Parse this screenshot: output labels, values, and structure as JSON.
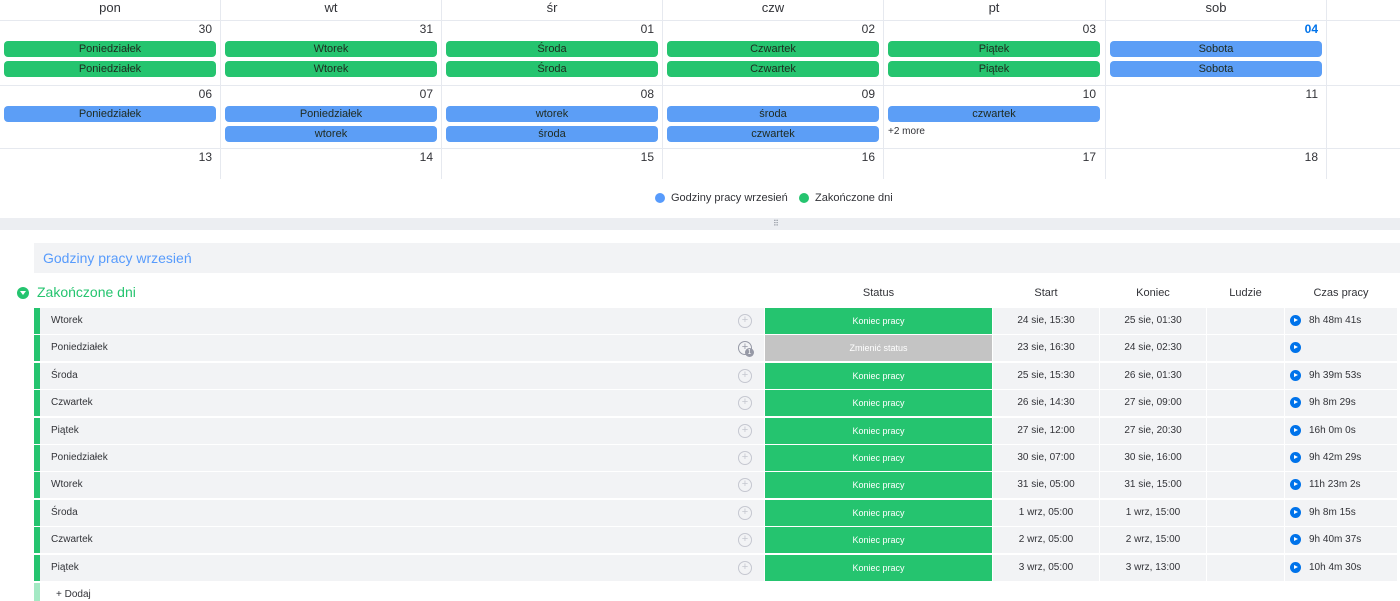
{
  "calendar": {
    "weekdays": [
      "pon",
      "wt",
      "śr",
      "czw",
      "pt",
      "sob"
    ],
    "weeks": [
      {
        "days": [
          {
            "num": "30",
            "today": false,
            "events": [
              {
                "label": "Poniedziałek",
                "color": "green"
              },
              {
                "label": "Poniedziałek",
                "color": "green"
              }
            ]
          },
          {
            "num": "31",
            "today": false,
            "events": [
              {
                "label": "Wtorek",
                "color": "green"
              },
              {
                "label": "Wtorek",
                "color": "green"
              }
            ]
          },
          {
            "num": "01",
            "today": false,
            "events": [
              {
                "label": "Środa",
                "color": "green"
              },
              {
                "label": "Środa",
                "color": "green"
              }
            ]
          },
          {
            "num": "02",
            "today": false,
            "events": [
              {
                "label": "Czwartek",
                "color": "green"
              },
              {
                "label": "Czwartek",
                "color": "green"
              }
            ]
          },
          {
            "num": "03",
            "today": false,
            "events": [
              {
                "label": "Piątek",
                "color": "green"
              },
              {
                "label": "Piątek",
                "color": "green"
              }
            ]
          },
          {
            "num": "04",
            "today": true,
            "events": [
              {
                "label": "Sobota",
                "color": "blue"
              },
              {
                "label": "Sobota",
                "color": "blue"
              }
            ]
          }
        ]
      },
      {
        "days": [
          {
            "num": "06",
            "today": false,
            "events": [
              {
                "label": "Poniedziałek",
                "color": "blue"
              }
            ]
          },
          {
            "num": "07",
            "today": false,
            "events": [
              {
                "label": "Poniedziałek",
                "color": "blue"
              },
              {
                "label": "wtorek",
                "color": "blue"
              }
            ]
          },
          {
            "num": "08",
            "today": false,
            "events": [
              {
                "label": "wtorek",
                "color": "blue"
              },
              {
                "label": "środa",
                "color": "blue"
              }
            ]
          },
          {
            "num": "09",
            "today": false,
            "events": [
              {
                "label": "środa",
                "color": "blue"
              },
              {
                "label": "czwartek",
                "color": "blue"
              }
            ]
          },
          {
            "num": "10",
            "today": false,
            "events": [
              {
                "label": "czwartek",
                "color": "blue"
              }
            ],
            "more": "+2 more"
          },
          {
            "num": "11",
            "today": false,
            "events": []
          }
        ]
      },
      {
        "days": [
          {
            "num": "13",
            "today": false,
            "events": []
          },
          {
            "num": "14",
            "today": false,
            "events": []
          },
          {
            "num": "15",
            "today": false,
            "events": []
          },
          {
            "num": "16",
            "today": false,
            "events": []
          },
          {
            "num": "17",
            "today": false,
            "events": []
          },
          {
            "num": "18",
            "today": false,
            "events": []
          }
        ]
      }
    ]
  },
  "legend": {
    "items": [
      {
        "label": "Godziny pracy wrzesień",
        "color": "#579bfc"
      },
      {
        "label": "Zakończone dni",
        "color": "#25c46f"
      }
    ]
  },
  "colors": {
    "green": "#25c46f",
    "blue": "#5c9ef6",
    "status_gray": "#c4c4c4",
    "accent_blue": "#0073ea"
  },
  "board": {
    "group1_title": "Godziny pracy wrzesień",
    "group2_title": "Zakończone dni",
    "columns": {
      "status": "Status",
      "start": "Start",
      "end": "Koniec",
      "people": "Ludzie",
      "time": "Czas pracy"
    },
    "rows": [
      {
        "name": "Wtorek",
        "status": "Koniec pracy",
        "status_type": "done",
        "start": "24 sie, 15:30",
        "end": "25 sie, 01:30",
        "time": "8h 48m 41s",
        "chat_badge": ""
      },
      {
        "name": "Poniedziałek",
        "status": "Zmienić status",
        "status_type": "change",
        "start": "23 sie, 16:30",
        "end": "24 sie, 02:30",
        "time": "",
        "chat_badge": "1"
      },
      {
        "name": "Środa",
        "status": "Koniec pracy",
        "status_type": "done",
        "start": "25 sie, 15:30",
        "end": "26 sie, 01:30",
        "time": "9h 39m 53s",
        "chat_badge": ""
      },
      {
        "name": "Czwartek",
        "status": "Koniec pracy",
        "status_type": "done",
        "start": "26 sie, 14:30",
        "end": "27 sie, 09:00",
        "time": "9h 8m 29s",
        "chat_badge": ""
      },
      {
        "name": "Piątek",
        "status": "Koniec pracy",
        "status_type": "done",
        "start": "27 sie, 12:00",
        "end": "27 sie, 20:30",
        "time": "16h 0m 0s",
        "chat_badge": ""
      },
      {
        "name": "Poniedziałek",
        "status": "Koniec pracy",
        "status_type": "done",
        "start": "30 sie, 07:00",
        "end": "30 sie, 16:00",
        "time": "9h 42m 29s",
        "chat_badge": ""
      },
      {
        "name": "Wtorek",
        "status": "Koniec pracy",
        "status_type": "done",
        "start": "31 sie, 05:00",
        "end": "31 sie, 15:00",
        "time": "11h 23m 2s",
        "chat_badge": ""
      },
      {
        "name": "Środa",
        "status": "Koniec pracy",
        "status_type": "done",
        "start": "1 wrz, 05:00",
        "end": "1 wrz, 15:00",
        "time": "9h 8m 15s",
        "chat_badge": ""
      },
      {
        "name": "Czwartek",
        "status": "Koniec pracy",
        "status_type": "done",
        "start": "2 wrz, 05:00",
        "end": "2 wrz, 15:00",
        "time": "9h 40m 37s",
        "chat_badge": ""
      },
      {
        "name": "Piątek",
        "status": "Koniec pracy",
        "status_type": "done",
        "start": "3 wrz, 05:00",
        "end": "3 wrz, 13:00",
        "time": "10h 4m 30s",
        "chat_badge": ""
      }
    ],
    "add_label": "+ Dodaj"
  }
}
